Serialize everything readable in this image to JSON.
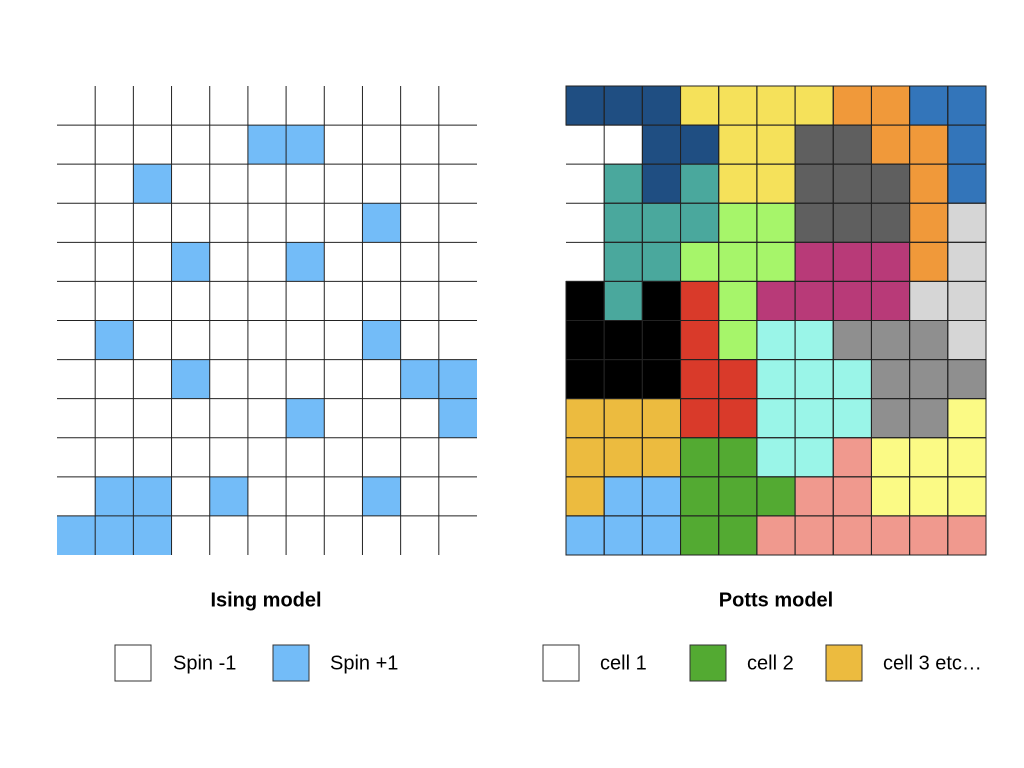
{
  "ising": {
    "title": "Ising model",
    "legend": [
      "Spin -1",
      "Spin +1"
    ]
  },
  "potts": {
    "title": "Potts model",
    "legend": [
      "cell 1",
      "cell 2",
      "cell 3 etc…"
    ]
  }
}
